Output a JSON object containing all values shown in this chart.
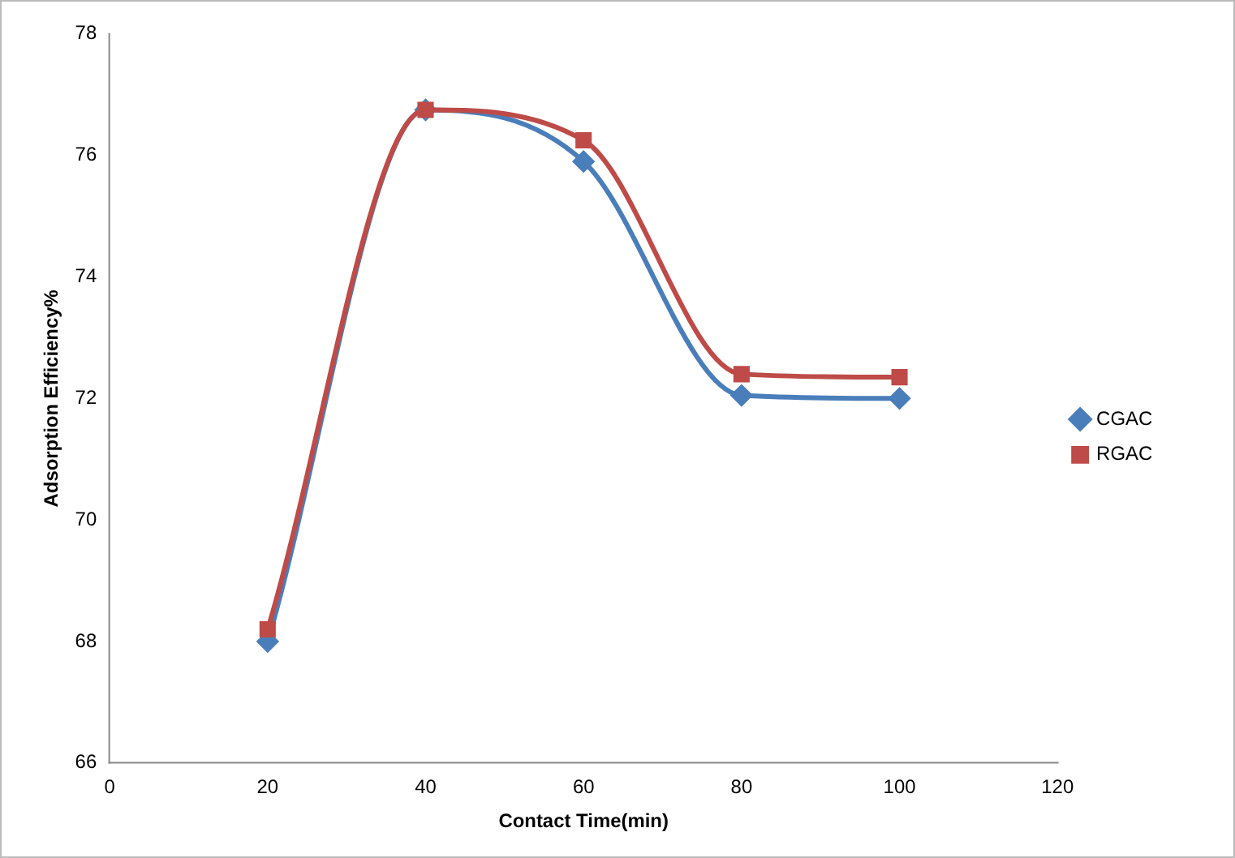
{
  "chart_data": {
    "type": "line",
    "xlabel": "Contact Time(min)",
    "ylabel": "Adsorption Efficiency%",
    "x": [
      20,
      40,
      60,
      80,
      100
    ],
    "series": [
      {
        "name": "CGAC",
        "color": "#4a7ebb",
        "marker": "diamond",
        "values": [
          68.0,
          76.75,
          75.9,
          72.05,
          72.0
        ]
      },
      {
        "name": "RGAC",
        "color": "#be4b48",
        "marker": "square",
        "values": [
          68.2,
          76.75,
          76.25,
          72.4,
          72.35
        ]
      }
    ],
    "xlim": [
      0,
      120
    ],
    "xticks": [
      0,
      20,
      40,
      60,
      80,
      100,
      120
    ],
    "ylim": [
      66,
      78
    ],
    "yticks": [
      66,
      68,
      70,
      72,
      74,
      76,
      78
    ],
    "grid": false,
    "legend": "right"
  }
}
